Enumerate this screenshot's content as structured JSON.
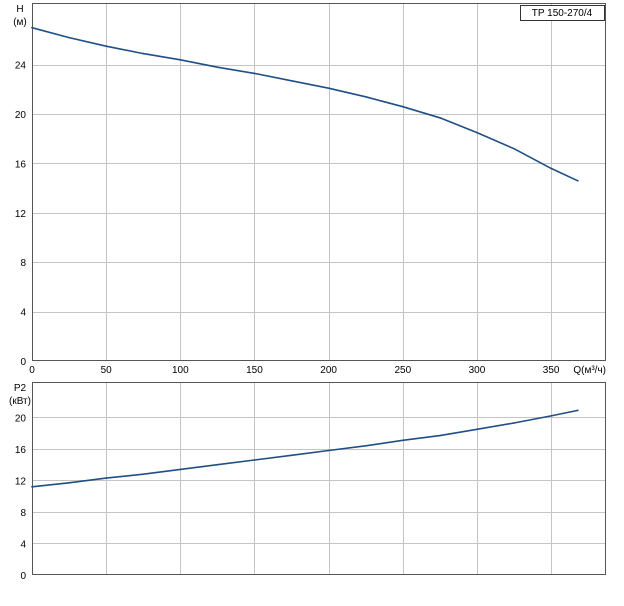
{
  "chart_data": [
    {
      "type": "line",
      "legend": "TP 150-270/4",
      "ylabel": "H",
      "yunit": "(м)",
      "xunit": "Q(м³/ч)",
      "xlim": [
        0,
        387
      ],
      "ylim": [
        0,
        29
      ],
      "xticks": [
        0,
        50,
        100,
        150,
        200,
        250,
        300,
        350
      ],
      "yticks": [
        0,
        4,
        8,
        12,
        16,
        20,
        24
      ],
      "grid": true,
      "color": "#1f4f86",
      "series": [
        {
          "x": [
            0,
            25,
            50,
            75,
            100,
            125,
            150,
            175,
            200,
            225,
            250,
            275,
            300,
            325,
            350,
            368
          ],
          "y": [
            27.0,
            26.2,
            25.5,
            24.9,
            24.4,
            23.8,
            23.3,
            22.7,
            22.1,
            21.4,
            20.6,
            19.7,
            18.5,
            17.2,
            15.6,
            14.6
          ]
        }
      ]
    },
    {
      "type": "line",
      "ylabel": "P2",
      "yunit": "(кВт)",
      "xlim": [
        0,
        387
      ],
      "ylim": [
        0,
        24.5
      ],
      "yticks": [
        0,
        4,
        8,
        12,
        16,
        20
      ],
      "grid": true,
      "color": "#1f4f86",
      "series": [
        {
          "x": [
            0,
            25,
            50,
            75,
            100,
            125,
            150,
            175,
            200,
            225,
            250,
            275,
            300,
            325,
            350,
            368
          ],
          "y": [
            11.2,
            11.7,
            12.3,
            12.8,
            13.4,
            14.0,
            14.6,
            15.2,
            15.8,
            16.4,
            17.1,
            17.7,
            18.5,
            19.3,
            20.2,
            20.9
          ]
        }
      ]
    }
  ]
}
